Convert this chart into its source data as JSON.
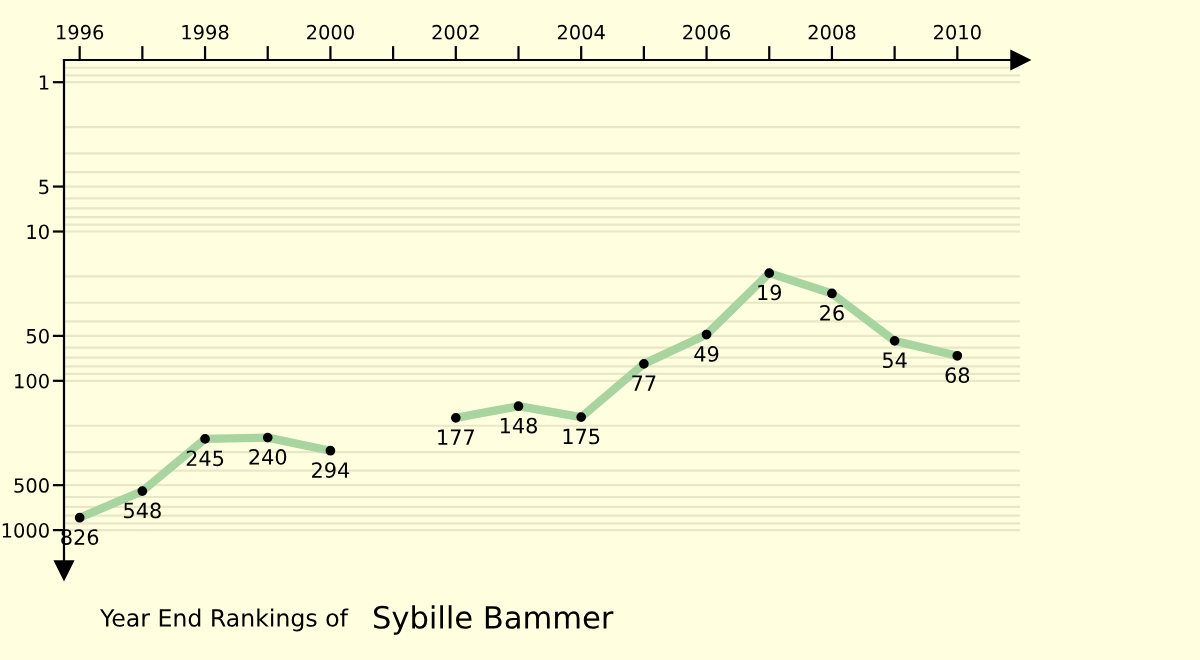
{
  "chart_data": {
    "type": "line",
    "title": "Year End Rankings of",
    "subtitle": "Sybille Bammer",
    "x": [
      1996,
      1997,
      1998,
      1999,
      2000,
      2001,
      2002,
      2003,
      2004,
      2005,
      2006,
      2007,
      2008,
      2009,
      2010
    ],
    "series": [
      {
        "color": "#a8d4a0",
        "values": [
          826,
          548,
          245,
          240,
          294,
          null,
          177,
          148,
          175,
          77,
          49,
          19,
          26,
          54,
          68
        ]
      }
    ],
    "xlim": [
      1995.75,
      2011
    ],
    "ylim": [
      1850,
      0.71
    ],
    "log": true,
    "xticks": [
      1996,
      {
        "value": 1997,
        "label": null
      },
      1998,
      {
        "value": 1999,
        "label": null
      },
      2000,
      {
        "value": 2001,
        "label": null
      },
      2002,
      {
        "value": 2003,
        "label": null
      },
      2004,
      {
        "value": 2005,
        "label": null
      },
      2006,
      {
        "value": 2007,
        "label": null
      },
      2008,
      {
        "value": 2009,
        "label": null
      },
      2010
    ],
    "yticks": [
      1,
      5,
      10,
      50,
      100,
      500,
      1000
    ],
    "grid": "y",
    "marker": "circle",
    "line_style": "solid",
    "data_labels": true
  }
}
